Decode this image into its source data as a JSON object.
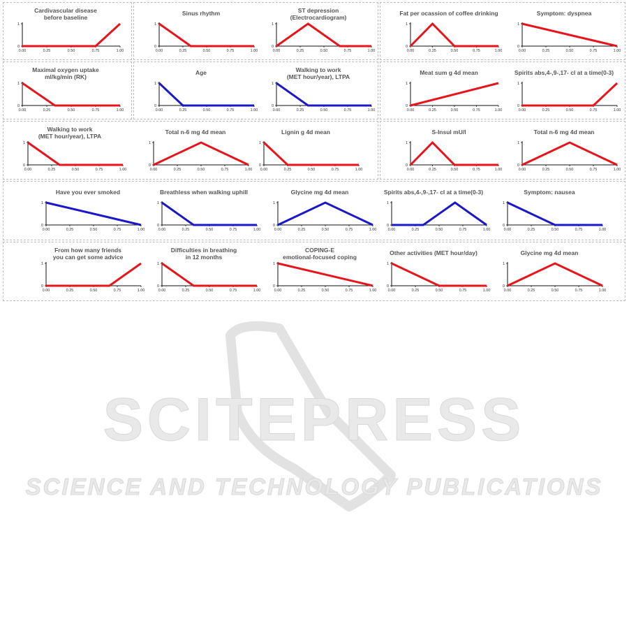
{
  "colors": {
    "red": "#e8141b",
    "blue": "#1a18c8",
    "axis": "#111111"
  },
  "watermark": {
    "logo": "SCITEPRESS",
    "tagline": "SCIENCE AND TECHNOLOGY PUBLICATIONS"
  },
  "chart_data": [
    {
      "type": "line",
      "title": "Cardivascular disease\nbefore baseline",
      "color": "red",
      "x": [
        0,
        0.25,
        0.5,
        0.75,
        1
      ],
      "values": [
        0,
        0,
        0,
        0,
        1
      ],
      "yticks": [
        "0",
        "1"
      ],
      "xticks": [
        "0.00",
        "0.25",
        "0.50",
        "0.75",
        "1.00"
      ]
    },
    {
      "type": "line",
      "title": "Sinus rhythm",
      "color": "red",
      "x": [
        0,
        0.333,
        0.667,
        1
      ],
      "values": [
        1,
        0,
        0,
        0
      ],
      "yticks": [
        "0",
        "1"
      ],
      "xticks": [
        "0.00",
        "0.25",
        "0.50",
        "0.75",
        "1.00"
      ]
    },
    {
      "type": "line",
      "title": "ST depression\n(Electrocardiogram)",
      "color": "red",
      "x": [
        0,
        0.333,
        0.667,
        1
      ],
      "values": [
        0,
        1,
        0,
        0
      ],
      "yticks": [
        "0",
        "1"
      ],
      "xticks": [
        "0.00",
        "0.25",
        "0.50",
        "0.75",
        "1.00"
      ]
    },
    {
      "type": "line",
      "title": "Fat per ocassion of coffee drinking",
      "color": "red",
      "x": [
        0,
        0.25,
        0.5,
        1
      ],
      "values": [
        0,
        1,
        0,
        0
      ],
      "yticks": [
        "0",
        "1"
      ],
      "xticks": [
        "0.00",
        "0.25",
        "0.50",
        "0.75",
        "1.00"
      ]
    },
    {
      "type": "line",
      "title": "Symptom: dyspnea",
      "color": "red",
      "x": [
        0,
        1
      ],
      "values": [
        1,
        0
      ],
      "yticks": [
        "0",
        "1"
      ],
      "xticks": [
        "0.00",
        "0.25",
        "0.50",
        "0.75",
        "1.00"
      ]
    },
    {
      "type": "line",
      "title": "Maximal oxygen uptake\nml/kg/min (RK)",
      "color": "red",
      "x": [
        0,
        0.333,
        0.667,
        1
      ],
      "values": [
        1,
        0,
        0,
        0
      ],
      "yticks": [
        "0",
        "1"
      ],
      "xticks": [
        "0.00",
        "0.25",
        "0.50",
        "0.75",
        "1.00"
      ]
    },
    {
      "type": "line",
      "title": "Age",
      "color": "blue",
      "x": [
        0,
        0.25,
        0.5,
        1
      ],
      "values": [
        1,
        0,
        0,
        0
      ],
      "yticks": [
        "0",
        "1"
      ],
      "xticks": [
        "0.00",
        "0.25",
        "0.50",
        "0.75",
        "1.00"
      ]
    },
    {
      "type": "line",
      "title": "Walking to work\n(MET hour/year), LTPA",
      "color": "blue",
      "x": [
        0,
        0.333,
        0.667,
        1
      ],
      "values": [
        1,
        0,
        0,
        0
      ],
      "yticks": [
        "0",
        "1"
      ],
      "xticks": [
        "0.00",
        "0.25",
        "0.50",
        "0.75",
        "1.00"
      ]
    },
    {
      "type": "line",
      "title": "Meat sum g 4d mean",
      "color": "red",
      "x": [
        0,
        1
      ],
      "values": [
        0,
        1
      ],
      "yticks": [
        "0",
        "1"
      ],
      "xticks": [
        "0.00",
        "0.25",
        "0.50",
        "0.75",
        "1.00"
      ]
    },
    {
      "type": "line",
      "title": "Spirits abs,4-,9-,17- cl at a time(0-3)",
      "color": "red",
      "x": [
        0,
        0.25,
        0.5,
        0.75,
        1
      ],
      "values": [
        0,
        0,
        0,
        0,
        1
      ],
      "yticks": [
        "0",
        "1"
      ],
      "xticks": [
        "0.00",
        "0.25",
        "0.50",
        "0.75",
        "1.00"
      ]
    },
    {
      "type": "line",
      "title": "Walking to work\n(MET hour/year), LTPA",
      "color": "red",
      "x": [
        0,
        0.333,
        0.667,
        1
      ],
      "values": [
        1,
        0,
        0,
        0
      ],
      "yticks": [
        "0",
        "1"
      ],
      "xticks": [
        "0.00",
        "0.25",
        "0.50",
        "0.75",
        "1.00"
      ]
    },
    {
      "type": "line",
      "title": "Total n-6 mg 4d mean",
      "color": "red",
      "x": [
        0,
        0.5,
        1
      ],
      "values": [
        0,
        1,
        0
      ],
      "yticks": [
        "0",
        "1"
      ],
      "xticks": [
        "0.00",
        "0.25",
        "0.50",
        "0.75",
        "1.00"
      ]
    },
    {
      "type": "line",
      "title": "Lignin g 4d mean",
      "color": "red",
      "x": [
        0,
        0.25,
        0.5,
        1
      ],
      "values": [
        1,
        0,
        0,
        0
      ],
      "yticks": [
        "0",
        "1"
      ],
      "xticks": [
        "0.00",
        "0.25",
        "0.50",
        "0.75",
        "1.00"
      ]
    },
    {
      "type": "line",
      "title": "S-Insul mU/l",
      "color": "red",
      "x": [
        0,
        0.25,
        0.5,
        1
      ],
      "values": [
        0,
        1,
        0,
        0
      ],
      "yticks": [
        "0",
        "1"
      ],
      "xticks": [
        "0.00",
        "0.25",
        "0.50",
        "0.75",
        "1.00"
      ]
    },
    {
      "type": "line",
      "title": "Total n-6 mg 4d mean",
      "color": "red",
      "x": [
        0,
        0.5,
        1
      ],
      "values": [
        0,
        1,
        0
      ],
      "yticks": [
        "0",
        "1"
      ],
      "xticks": [
        "0.00",
        "0.25",
        "0.50",
        "0.75",
        "1.00"
      ]
    },
    {
      "type": "line",
      "title": "Have you ever smoked",
      "color": "blue",
      "x": [
        0,
        1
      ],
      "values": [
        1,
        0
      ],
      "yticks": [
        "0",
        "1"
      ],
      "xticks": [
        "0.00",
        "0.25",
        "0.50",
        "0.75",
        "1.00"
      ]
    },
    {
      "type": "line",
      "title": "Breathless when walking uphill",
      "color": "blue",
      "x": [
        0,
        0.333,
        0.667,
        1
      ],
      "values": [
        1,
        0,
        0,
        0
      ],
      "yticks": [
        "0",
        "1"
      ],
      "xticks": [
        "0.00",
        "0.25",
        "0.50",
        "0.75",
        "1.00"
      ]
    },
    {
      "type": "line",
      "title": "Glycine mg 4d mean",
      "color": "blue",
      "x": [
        0,
        0.5,
        1
      ],
      "values": [
        0,
        1,
        0
      ],
      "yticks": [
        "0",
        "1"
      ],
      "xticks": [
        "0.00",
        "0.25",
        "0.50",
        "0.75",
        "1.00"
      ]
    },
    {
      "type": "line",
      "title": "Spirits abs,4-,9-,17- cl at a time(0-3)",
      "color": "blue",
      "x": [
        0,
        0.333,
        0.667,
        1
      ],
      "values": [
        0,
        0,
        1,
        0
      ],
      "yticks": [
        "0",
        "1"
      ],
      "xticks": [
        "0.00",
        "0.25",
        "0.50",
        "0.75",
        "1.00"
      ]
    },
    {
      "type": "line",
      "title": "Symptom: nausea",
      "color": "blue",
      "x": [
        0,
        0.5,
        1
      ],
      "values": [
        1,
        0,
        0
      ],
      "yticks": [
        "0",
        "1"
      ],
      "xticks": [
        "0.00",
        "0.25",
        "0.50",
        "0.75",
        "1.00"
      ]
    },
    {
      "type": "line",
      "title": "From how many friends\nyou can get some advice",
      "color": "red",
      "x": [
        0,
        0.333,
        0.667,
        1
      ],
      "values": [
        0,
        0,
        0,
        1
      ],
      "yticks": [
        "0",
        "1"
      ],
      "xticks": [
        "0.00",
        "0.25",
        "0.50",
        "0.75",
        "1.00"
      ]
    },
    {
      "type": "line",
      "title": "Difficulties in breathing\nin 12 months",
      "color": "red",
      "x": [
        0,
        0.333,
        0.667,
        1
      ],
      "values": [
        1,
        0,
        0,
        0
      ],
      "yticks": [
        "0",
        "1"
      ],
      "xticks": [
        "0.00",
        "0.25",
        "0.50",
        "0.75",
        "1.00"
      ]
    },
    {
      "type": "line",
      "title": "COPING-E\nemotional-focused coping",
      "color": "red",
      "x": [
        0,
        1
      ],
      "values": [
        1,
        0
      ],
      "yticks": [
        "0",
        "1"
      ],
      "xticks": [
        "0.00",
        "0.25",
        "0.50",
        "0.75",
        "1.00"
      ]
    },
    {
      "type": "line",
      "title": "Other activities (MET hour/day)",
      "color": "red",
      "x": [
        0,
        0.5,
        1
      ],
      "values": [
        1,
        0,
        0
      ],
      "yticks": [
        "0",
        "1"
      ],
      "xticks": [
        "0.00",
        "0.25",
        "0.50",
        "0.75",
        "1.00"
      ]
    },
    {
      "type": "line",
      "title": "Glycine mg 4d mean",
      "color": "red",
      "x": [
        0,
        0.5,
        1
      ],
      "values": [
        0,
        1,
        0
      ],
      "yticks": [
        "0",
        "1"
      ],
      "xticks": [
        "0.00",
        "0.25",
        "0.50",
        "0.75",
        "1.00"
      ]
    }
  ]
}
